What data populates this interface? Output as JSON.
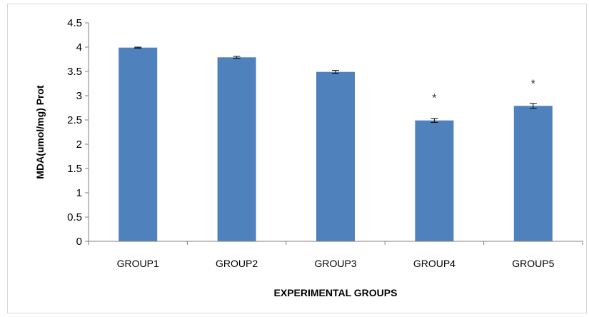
{
  "chart_data": {
    "type": "bar",
    "categories": [
      "GROUP1",
      "GROUP2",
      "GROUP3",
      "GROUP4",
      "GROUP5"
    ],
    "values": [
      3.99,
      3.79,
      3.49,
      2.49,
      2.79
    ],
    "errors": [
      0.01,
      0.02,
      0.03,
      0.04,
      0.05
    ],
    "annotations": [
      "",
      "",
      "",
      "*",
      "*"
    ],
    "xlabel": "EXPERIMENTAL GROUPS",
    "ylabel": "MDA(umol/mg) Prot",
    "ylim": [
      0,
      4.5
    ],
    "yticks": [
      "0",
      "0.5",
      "1",
      "1.5",
      "2",
      "2.5",
      "3",
      "3.5",
      "4",
      "4.5"
    ],
    "bar_color": "#4f81bd",
    "grid": false,
    "legend": "none"
  }
}
